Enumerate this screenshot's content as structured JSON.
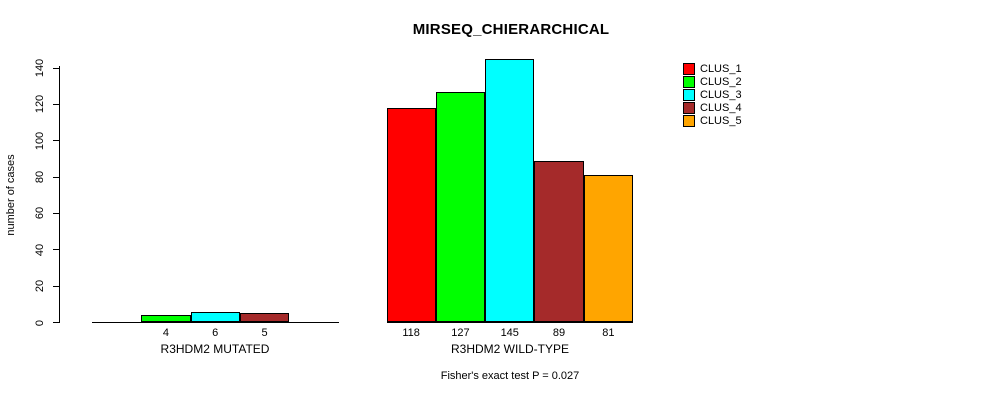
{
  "title": "MIRSEQ_CHIERARCHICAL",
  "subtitle": "Fisher's exact test P = 0.027",
  "y_axis": {
    "label": "number of cases",
    "ticks": [
      0,
      20,
      40,
      60,
      80,
      100,
      120,
      140
    ]
  },
  "legend": {
    "items": [
      {
        "label": "CLUS_1",
        "color": "#FF0000"
      },
      {
        "label": "CLUS_2",
        "color": "#00FF00"
      },
      {
        "label": "CLUS_3",
        "color": "#00FFFF"
      },
      {
        "label": "CLUS_4",
        "color": "#A52A2A"
      },
      {
        "label": "CLUS_5",
        "color": "#FFA500"
      }
    ]
  },
  "chart_data": {
    "type": "bar",
    "title": "MIRSEQ_CHIERARCHICAL",
    "xlabel": "",
    "ylabel": "number of cases",
    "ylim": [
      0,
      140
    ],
    "yticks": [
      0,
      20,
      40,
      60,
      80,
      100,
      120,
      140
    ],
    "grid": false,
    "legend_position": "right",
    "categories": [
      "R3HDM2 MUTATED",
      "R3HDM2 WILD-TYPE"
    ],
    "series": [
      {
        "name": "CLUS_1",
        "color": "#FF0000",
        "values": [
          0,
          118
        ]
      },
      {
        "name": "CLUS_2",
        "color": "#00FF00",
        "values": [
          4,
          127
        ]
      },
      {
        "name": "CLUS_3",
        "color": "#00FFFF",
        "values": [
          6,
          145
        ]
      },
      {
        "name": "CLUS_4",
        "color": "#A52A2A",
        "values": [
          5,
          89
        ]
      },
      {
        "name": "CLUS_5",
        "color": "#FFA500",
        "values": [
          0,
          81
        ]
      }
    ],
    "bar_labels": "values shown under each nonzero bar",
    "annotation": "Fisher's exact test P = 0.027"
  }
}
